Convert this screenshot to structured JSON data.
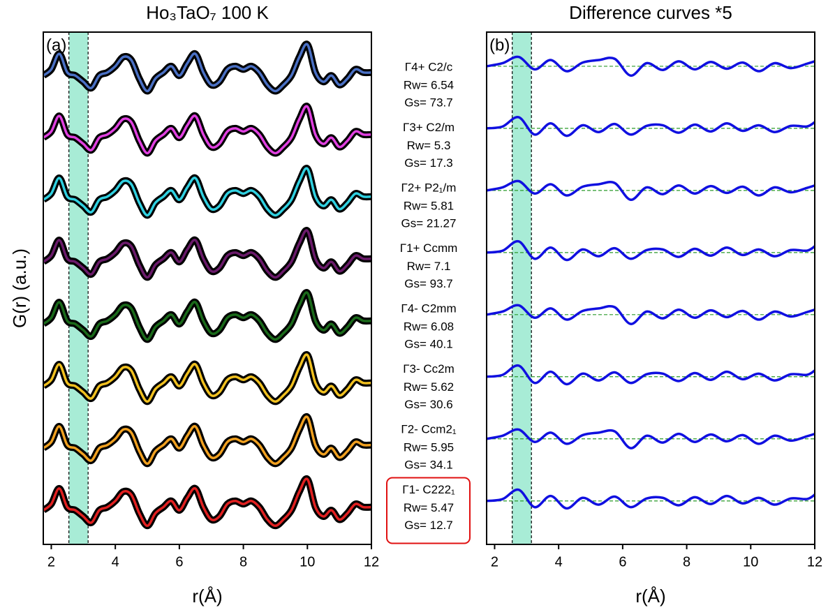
{
  "chart_data": [
    {
      "type": "line",
      "title": "Ho₃TaO₇ 100 K",
      "panel_label": "(a)",
      "x_label": "r(Å)",
      "y_label": "G(r) (a.u.)",
      "x": [
        1.75,
        2.0,
        2.25,
        2.5,
        2.75,
        3.0,
        3.25,
        3.5,
        3.75,
        4.0,
        4.25,
        4.5,
        4.75,
        5.0,
        5.25,
        5.5,
        5.75,
        6.0,
        6.25,
        6.5,
        6.75,
        7.0,
        7.25,
        7.5,
        7.75,
        8.0,
        8.25,
        8.5,
        8.75,
        9.0,
        9.25,
        9.5,
        9.75,
        10.0,
        10.25,
        10.5,
        10.75,
        11.0,
        11.25,
        11.5,
        11.75,
        12.0
      ],
      "xlim": [
        1.75,
        12
      ],
      "xticks": [
        2,
        4,
        6,
        8,
        10,
        12
      ],
      "ylim": [
        -0.55,
        7.7
      ],
      "shaded_region": [
        2.55,
        3.15
      ],
      "shade_color": "#a8ecd6",
      "outline_color": "#000000",
      "series": [
        {
          "color": "#4a70c4",
          "values": [
            7.0,
            7.1,
            7.35,
            7.05,
            7.0,
            6.9,
            6.8,
            7.0,
            7.05,
            7.15,
            7.3,
            7.25,
            6.95,
            6.75,
            6.95,
            7.05,
            7.15,
            7.0,
            7.2,
            7.35,
            7.05,
            6.85,
            6.9,
            7.1,
            7.15,
            7.1,
            7.15,
            7.05,
            6.85,
            6.75,
            6.85,
            7.0,
            7.3,
            7.5,
            7.05,
            6.9,
            7.0,
            6.85,
            6.95,
            7.1,
            7.05,
            7.05
          ]
        },
        {
          "color": "#e040e0",
          "values": [
            6.0,
            6.1,
            6.35,
            6.05,
            6.0,
            5.9,
            5.8,
            6.0,
            6.05,
            6.15,
            6.3,
            6.25,
            5.95,
            5.75,
            5.95,
            6.05,
            6.15,
            6.0,
            6.2,
            6.35,
            6.05,
            5.85,
            5.9,
            6.1,
            6.15,
            6.1,
            6.15,
            6.05,
            5.85,
            5.75,
            5.85,
            6.0,
            6.3,
            6.5,
            6.05,
            5.9,
            6.0,
            5.85,
            5.95,
            6.1,
            6.05,
            6.05
          ]
        },
        {
          "color": "#30d0e0",
          "values": [
            5.0,
            5.1,
            5.35,
            5.05,
            5.0,
            4.9,
            4.8,
            5.0,
            5.05,
            5.15,
            5.3,
            5.25,
            4.95,
            4.75,
            4.95,
            5.05,
            5.15,
            5.0,
            5.2,
            5.35,
            5.05,
            4.85,
            4.9,
            5.1,
            5.15,
            5.1,
            5.15,
            5.05,
            4.85,
            4.75,
            4.85,
            5.0,
            5.3,
            5.5,
            5.05,
            4.9,
            5.0,
            4.85,
            4.95,
            5.1,
            5.05,
            5.05
          ]
        },
        {
          "color": "#6a1a6a",
          "values": [
            4.0,
            4.1,
            4.35,
            4.05,
            4.0,
            3.9,
            3.8,
            4.0,
            4.05,
            4.15,
            4.3,
            4.25,
            3.95,
            3.75,
            3.95,
            4.05,
            4.15,
            4.0,
            4.2,
            4.35,
            4.05,
            3.85,
            3.9,
            4.1,
            4.15,
            4.1,
            4.15,
            4.05,
            3.85,
            3.75,
            3.85,
            4.0,
            4.3,
            4.5,
            4.05,
            3.9,
            4.0,
            3.85,
            3.95,
            4.1,
            4.05,
            4.05
          ]
        },
        {
          "color": "#1a6a1a",
          "values": [
            3.0,
            3.1,
            3.35,
            3.05,
            3.0,
            2.9,
            2.8,
            3.0,
            3.05,
            3.15,
            3.3,
            3.25,
            2.95,
            2.75,
            2.95,
            3.05,
            3.15,
            3.0,
            3.2,
            3.35,
            3.05,
            2.85,
            2.9,
            3.1,
            3.15,
            3.1,
            3.15,
            3.05,
            2.85,
            2.75,
            2.85,
            3.0,
            3.3,
            3.5,
            3.05,
            2.9,
            3.0,
            2.85,
            2.95,
            3.1,
            3.05,
            3.05
          ]
        },
        {
          "color": "#f0c020",
          "values": [
            2.0,
            2.1,
            2.35,
            2.05,
            2.0,
            1.9,
            1.8,
            2.0,
            2.05,
            2.15,
            2.3,
            2.25,
            1.95,
            1.75,
            1.95,
            2.05,
            2.15,
            2.0,
            2.2,
            2.35,
            2.05,
            1.85,
            1.9,
            2.1,
            2.15,
            2.1,
            2.15,
            2.05,
            1.85,
            1.75,
            1.85,
            2.0,
            2.3,
            2.5,
            2.05,
            1.9,
            2.0,
            1.85,
            1.95,
            2.1,
            2.05,
            2.05
          ]
        },
        {
          "color": "#f0a020",
          "values": [
            1.0,
            1.1,
            1.35,
            1.05,
            1.0,
            0.9,
            0.8,
            1.0,
            1.05,
            1.15,
            1.3,
            1.25,
            0.95,
            0.75,
            0.95,
            1.05,
            1.15,
            1.0,
            1.2,
            1.35,
            1.05,
            0.85,
            0.9,
            1.1,
            1.15,
            1.1,
            1.15,
            1.05,
            0.85,
            0.75,
            0.85,
            1.0,
            1.3,
            1.5,
            1.05,
            0.9,
            1.0,
            0.85,
            0.95,
            1.1,
            1.05,
            1.05
          ]
        },
        {
          "color": "#e02020",
          "values": [
            0.0,
            0.1,
            0.35,
            0.05,
            0.0,
            -0.1,
            -0.2,
            0.0,
            0.05,
            0.15,
            0.3,
            0.25,
            -0.05,
            -0.25,
            -0.05,
            0.05,
            0.15,
            0.0,
            0.2,
            0.35,
            0.05,
            -0.15,
            -0.1,
            0.1,
            0.15,
            0.1,
            0.15,
            0.05,
            -0.15,
            -0.25,
            -0.15,
            0.0,
            0.3,
            0.5,
            0.05,
            -0.1,
            0.0,
            -0.15,
            -0.05,
            0.1,
            0.05,
            0.05
          ]
        }
      ]
    },
    {
      "type": "line",
      "title": "Difference curves *5",
      "panel_label": "(b)",
      "x_label": "r(Å)",
      "x": [
        1.75,
        2.25,
        2.75,
        3.25,
        3.75,
        4.25,
        4.75,
        5.25,
        5.75,
        6.25,
        6.75,
        7.25,
        7.75,
        8.25,
        8.75,
        9.25,
        9.75,
        10.25,
        10.75,
        11.25,
        11.75,
        12.0
      ],
      "xlim": [
        1.75,
        12
      ],
      "xticks": [
        2,
        4,
        6,
        8,
        10,
        12
      ],
      "ylim": [
        -0.7,
        7.55
      ],
      "shaded_region": [
        2.55,
        3.15
      ],
      "shade_color": "#a8ecd6",
      "baseline_color": "#2a9a2a",
      "series": [
        {
          "color": "#1010e0",
          "baseline": 7,
          "values": [
            7.0,
            7.05,
            7.15,
            6.95,
            7.1,
            6.92,
            7.06,
            7.1,
            7.12,
            6.85,
            7.05,
            6.94,
            7.08,
            6.95,
            7.07,
            6.96,
            7.06,
            6.92,
            7.05,
            6.97,
            7.04,
            7.08
          ]
        },
        {
          "color": "#1010e0",
          "baseline": 6,
          "values": [
            6.0,
            6.03,
            6.18,
            5.9,
            6.08,
            5.88,
            6.05,
            5.94,
            6.07,
            5.9,
            6.04,
            6.05,
            5.93,
            6.06,
            5.95,
            6.08,
            5.96,
            6.05,
            5.94,
            6.04,
            6.03,
            6.1
          ]
        },
        {
          "color": "#1010e0",
          "baseline": 5,
          "values": [
            5.0,
            5.05,
            5.15,
            4.95,
            5.1,
            4.92,
            5.06,
            5.1,
            5.12,
            4.85,
            5.05,
            4.94,
            5.08,
            4.95,
            5.07,
            4.96,
            5.06,
            4.92,
            5.05,
            4.97,
            5.04,
            5.08
          ]
        },
        {
          "color": "#1010e0",
          "baseline": 4,
          "values": [
            4.0,
            4.03,
            4.18,
            3.9,
            4.08,
            3.88,
            4.05,
            3.94,
            4.07,
            3.9,
            4.04,
            4.05,
            3.93,
            4.06,
            3.95,
            4.08,
            3.96,
            4.05,
            3.94,
            4.04,
            4.03,
            4.1
          ]
        },
        {
          "color": "#1010e0",
          "baseline": 3,
          "values": [
            3.0,
            3.05,
            3.15,
            2.95,
            3.1,
            2.92,
            3.06,
            3.1,
            3.12,
            2.85,
            3.05,
            2.94,
            3.08,
            2.95,
            3.07,
            2.96,
            3.06,
            2.92,
            3.05,
            2.97,
            3.04,
            3.08
          ]
        },
        {
          "color": "#1010e0",
          "baseline": 2,
          "values": [
            2.0,
            2.03,
            2.18,
            1.9,
            2.08,
            1.88,
            2.05,
            1.94,
            2.07,
            1.9,
            2.04,
            2.05,
            1.93,
            2.06,
            1.95,
            2.08,
            1.96,
            2.05,
            1.94,
            2.04,
            2.03,
            2.1
          ]
        },
        {
          "color": "#1010e0",
          "baseline": 1,
          "values": [
            1.0,
            1.05,
            1.15,
            0.95,
            1.1,
            0.92,
            1.06,
            1.1,
            1.12,
            0.85,
            1.05,
            0.94,
            1.08,
            0.95,
            1.07,
            0.96,
            1.06,
            0.92,
            1.05,
            0.97,
            1.04,
            1.08
          ]
        },
        {
          "color": "#1010e0",
          "baseline": 0,
          "values": [
            0.0,
            0.03,
            0.18,
            -0.1,
            0.08,
            -0.12,
            0.05,
            -0.06,
            0.07,
            -0.1,
            0.04,
            0.05,
            -0.07,
            0.06,
            -0.05,
            0.08,
            -0.04,
            0.05,
            -0.06,
            0.04,
            0.03,
            0.1
          ]
        }
      ]
    }
  ],
  "fit_labels": [
    {
      "model": "Γ4+ C2/c",
      "rw": "Rw= 6.54",
      "gs": "Gs= 73.7"
    },
    {
      "model": "Γ3+ C2/m",
      "rw": "Rw= 5.3",
      "gs": "Gs= 17.3"
    },
    {
      "model": "Γ2+ P2₁/m",
      "rw": "Rw= 5.81",
      "gs": "Gs= 21.27"
    },
    {
      "model": "Γ1+ Ccmm",
      "rw": "Rw= 7.1",
      "gs": "Gs= 93.7"
    },
    {
      "model": "Γ4- C2mm",
      "rw": "Rw= 6.08",
      "gs": "Gs= 40.1"
    },
    {
      "model": "Γ3- Cc2m",
      "rw": "Rw= 5.62",
      "gs": "Gs= 30.6"
    },
    {
      "model": "Γ2- Ccm2₁",
      "rw": "Rw= 5.95",
      "gs": "Gs= 34.1"
    },
    {
      "model": "Γ1- C222₁",
      "rw": "Rw= 5.47",
      "gs": "Gs= 12.7",
      "boxed": true
    }
  ]
}
